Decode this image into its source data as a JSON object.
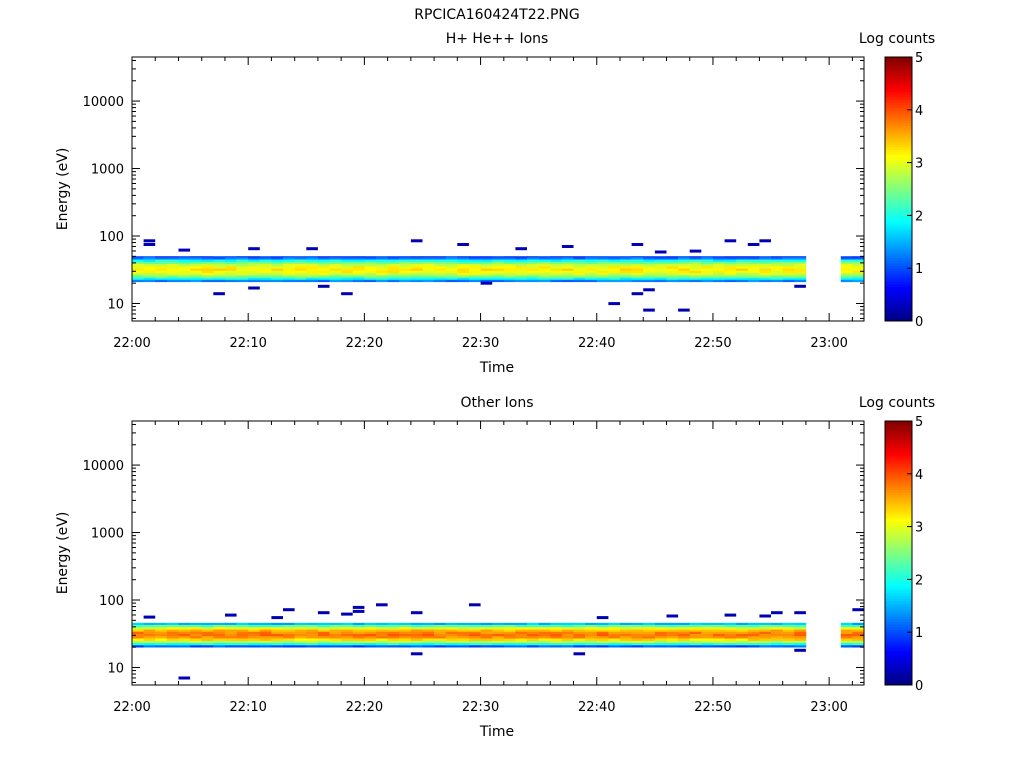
{
  "figure_title": "RPCICA160424T22.PNG",
  "chart_data": [
    {
      "type": "heatmap",
      "title": "H+ He++ Ions",
      "xlabel": "Time",
      "ylabel": "Energy (eV)",
      "x_ticks": [
        "22:00",
        "22:10",
        "22:20",
        "22:30",
        "22:40",
        "22:50",
        "23:00"
      ],
      "y_ticks": [
        "10",
        "100",
        "1000",
        "10000"
      ],
      "y_scale": "log",
      "ylim": [
        5.5,
        45000
      ],
      "xlim": [
        "22:00",
        "23:03"
      ],
      "data_gap": [
        "22:58",
        "23:01"
      ],
      "colorbar": {
        "label": "Log counts",
        "range": [
          0,
          5
        ],
        "ticks": [
          "0",
          "1",
          "2",
          "3",
          "4",
          "5"
        ],
        "colormap": "jet"
      },
      "band": {
        "energy_min_eV": 21,
        "energy_max_eV": 50,
        "peak_energy_eV": 32,
        "peak_log_counts": 3.2
      },
      "sparse_pixels": [
        {
          "t": "22:01",
          "e": 85
        },
        {
          "t": "22:01",
          "e": 75
        },
        {
          "t": "22:04",
          "e": 62
        },
        {
          "t": "22:07",
          "e": 14
        },
        {
          "t": "22:10",
          "e": 17
        },
        {
          "t": "22:10",
          "e": 65
        },
        {
          "t": "22:15",
          "e": 65
        },
        {
          "t": "22:16",
          "e": 18
        },
        {
          "t": "22:18",
          "e": 14
        },
        {
          "t": "22:24",
          "e": 85
        },
        {
          "t": "22:28",
          "e": 75
        },
        {
          "t": "22:30",
          "e": 20
        },
        {
          "t": "22:33",
          "e": 65
        },
        {
          "t": "22:37",
          "e": 70
        },
        {
          "t": "22:41",
          "e": 10
        },
        {
          "t": "22:43",
          "e": 75
        },
        {
          "t": "22:43",
          "e": 14
        },
        {
          "t": "22:44",
          "e": 16
        },
        {
          "t": "22:44",
          "e": 8
        },
        {
          "t": "22:45",
          "e": 58
        },
        {
          "t": "22:47",
          "e": 8
        },
        {
          "t": "22:48",
          "e": 60
        },
        {
          "t": "22:51",
          "e": 85
        },
        {
          "t": "22:53",
          "e": 75
        },
        {
          "t": "22:54",
          "e": 85
        },
        {
          "t": "22:57",
          "e": 18
        }
      ]
    },
    {
      "type": "heatmap",
      "title": "Other Ions",
      "xlabel": "Time",
      "ylabel": "Energy (eV)",
      "x_ticks": [
        "22:00",
        "22:10",
        "22:20",
        "22:30",
        "22:40",
        "22:50",
        "23:00"
      ],
      "y_ticks": [
        "10",
        "100",
        "1000",
        "10000"
      ],
      "y_scale": "log",
      "ylim": [
        5.5,
        45000
      ],
      "xlim": [
        "22:00",
        "23:03"
      ],
      "data_gap": [
        "22:58",
        "23:01"
      ],
      "colorbar": {
        "label": "Log counts",
        "range": [
          0,
          5
        ],
        "ticks": [
          "0",
          "1",
          "2",
          "3",
          "4",
          "5"
        ],
        "colormap": "jet"
      },
      "band": {
        "energy_min_eV": 20,
        "energy_max_eV": 46,
        "peak_energy_eV": 31,
        "peak_log_counts": 3.8
      },
      "sparse_pixels": [
        {
          "t": "22:01",
          "e": 56
        },
        {
          "t": "22:04",
          "e": 7
        },
        {
          "t": "22:08",
          "e": 60
        },
        {
          "t": "22:12",
          "e": 55
        },
        {
          "t": "22:13",
          "e": 72
        },
        {
          "t": "22:16",
          "e": 65
        },
        {
          "t": "22:18",
          "e": 62
        },
        {
          "t": "22:19",
          "e": 68
        },
        {
          "t": "22:19",
          "e": 78
        },
        {
          "t": "22:21",
          "e": 85
        },
        {
          "t": "22:24",
          "e": 65
        },
        {
          "t": "22:24",
          "e": 16
        },
        {
          "t": "22:29",
          "e": 85
        },
        {
          "t": "22:38",
          "e": 16
        },
        {
          "t": "22:40",
          "e": 55
        },
        {
          "t": "22:46",
          "e": 58
        },
        {
          "t": "22:51",
          "e": 60
        },
        {
          "t": "22:54",
          "e": 58
        },
        {
          "t": "22:55",
          "e": 65
        },
        {
          "t": "22:57",
          "e": 65
        },
        {
          "t": "22:57",
          "e": 18
        },
        {
          "t": "23:02",
          "e": 72
        }
      ]
    }
  ]
}
